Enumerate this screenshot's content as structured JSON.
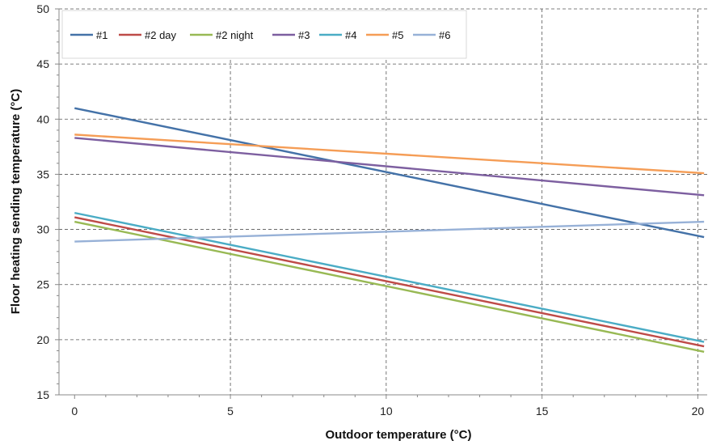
{
  "chart_data": {
    "type": "line",
    "xlabel": "Outdoor temperature (°C)",
    "ylabel": "Floor heating sending temperature (°C)",
    "xlim": [
      -0.5,
      20.3
    ],
    "ylim": [
      15,
      50
    ],
    "xticks": [
      0,
      5,
      10,
      15,
      20
    ],
    "yticks": [
      15,
      20,
      25,
      30,
      35,
      40,
      45,
      50
    ],
    "grid": "dashed",
    "legend_position": "top-left",
    "series": [
      {
        "name": "#1",
        "color": "#4472a8",
        "x": [
          0,
          20.2
        ],
        "y": [
          41.0,
          29.3
        ]
      },
      {
        "name": "#2 day",
        "color": "#be4b48",
        "x": [
          0,
          20.2
        ],
        "y": [
          31.1,
          19.4
        ]
      },
      {
        "name": "#2 night",
        "color": "#98b954",
        "x": [
          0,
          20.2
        ],
        "y": [
          30.7,
          18.9
        ]
      },
      {
        "name": "#3",
        "color": "#7d5fa0",
        "x": [
          0,
          20.2
        ],
        "y": [
          38.3,
          33.1
        ]
      },
      {
        "name": "#4",
        "color": "#4aacc5",
        "x": [
          0,
          20.2
        ],
        "y": [
          31.5,
          19.8
        ]
      },
      {
        "name": "#5",
        "color": "#f59d56",
        "x": [
          0,
          20.2
        ],
        "y": [
          38.6,
          35.1
        ]
      },
      {
        "name": "#6",
        "color": "#97b1d7",
        "x": [
          0,
          20.2
        ],
        "y": [
          28.9,
          30.7
        ]
      }
    ]
  }
}
